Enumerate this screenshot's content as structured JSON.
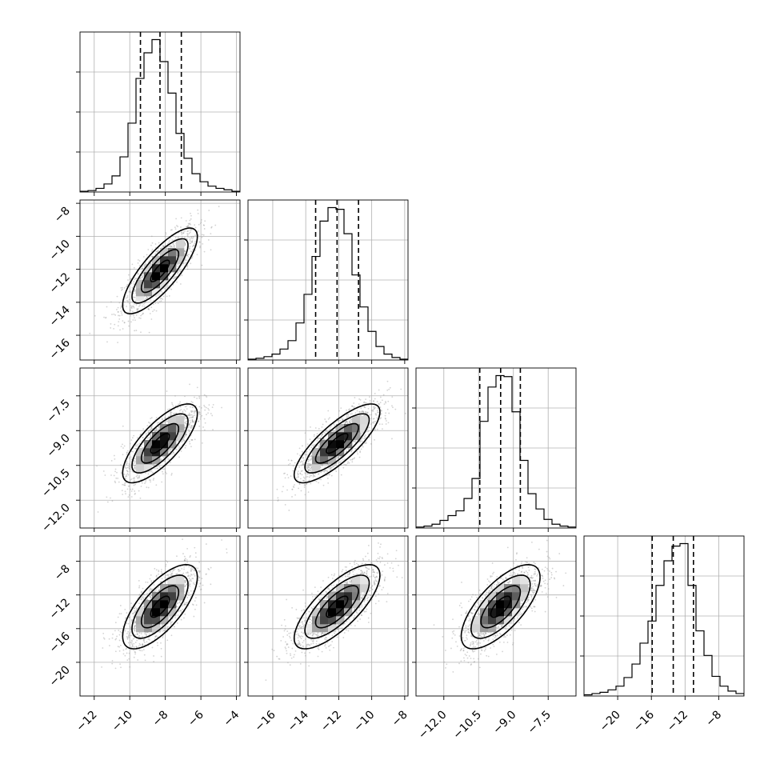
{
  "chart_data": {
    "type": "corner",
    "parameters": 4,
    "grid": true,
    "colors": {
      "points": "#9e9e9e",
      "density_dark": "#000000",
      "density_light": "#f0f0f0",
      "lines": "#000000",
      "grid": "#b0b0b0"
    },
    "variables": [
      {
        "range": [
          -12.8,
          -3.8
        ],
        "ticks": [
          -12,
          -10,
          -8,
          -6,
          -4
        ],
        "tick_labels": [
          "−12",
          "−10",
          "−8",
          "−6",
          "−4"
        ],
        "mean": -8.3,
        "sd": 1.05,
        "quantiles": [
          -9.4,
          -8.3,
          -7.1
        ]
      },
      {
        "range": [
          -17.5,
          -7.8
        ],
        "ticks": [
          -16,
          -14,
          -12,
          -10,
          -8
        ],
        "tick_labels": [
          "−16",
          "−14",
          "−12",
          "−10",
          "−8"
        ],
        "mean": -12.1,
        "sd": 1.3,
        "quantiles": [
          -13.4,
          -12.1,
          -10.8
        ]
      },
      {
        "range": [
          -13.2,
          -6.3
        ],
        "ticks": [
          -12.0,
          -10.5,
          -9.0,
          -7.5
        ],
        "tick_labels": [
          "−12.0",
          "−10.5",
          "−9.0",
          "−7.5"
        ],
        "mean": -9.55,
        "sd": 0.85,
        "quantiles": [
          -10.45,
          -9.55,
          -8.7
        ]
      },
      {
        "range": [
          -24,
          -5
        ],
        "ticks": [
          -20,
          -16,
          -12,
          -8
        ],
        "tick_labels": [
          "−20",
          "−16",
          "−12",
          "−8"
        ],
        "mean": -13.4,
        "sd": 2.5,
        "quantiles": [
          -15.9,
          -13.4,
          -11.0
        ]
      }
    ],
    "correlations": [
      [
        1,
        0.8,
        0.75,
        0.7
      ],
      [
        0.8,
        1,
        0.8,
        0.75
      ],
      [
        0.75,
        0.8,
        1,
        0.7
      ],
      [
        0.7,
        0.75,
        0.7,
        1
      ]
    ],
    "histograms": {
      "bins": 20,
      "counts": [
        [
          1,
          2,
          5,
          11,
          22,
          48,
          94,
          155,
          190,
          208,
          178,
          135,
          80,
          46,
          25,
          14,
          8,
          5,
          3,
          1
        ],
        [
          1,
          2,
          4,
          7,
          13,
          23,
          44,
          78,
          123,
          165,
          181,
          179,
          150,
          101,
          63,
          34,
          16,
          7,
          3,
          1
        ],
        [
          1,
          2,
          4,
          8,
          13,
          18,
          31,
          52,
          112,
          148,
          160,
          159,
          122,
          71,
          36,
          20,
          9,
          4,
          2,
          1
        ],
        [
          1,
          2,
          3,
          5,
          8,
          15,
          26,
          43,
          61,
          90,
          110,
          122,
          124,
          90,
          53,
          33,
          16,
          8,
          4,
          2
        ]
      ]
    }
  }
}
